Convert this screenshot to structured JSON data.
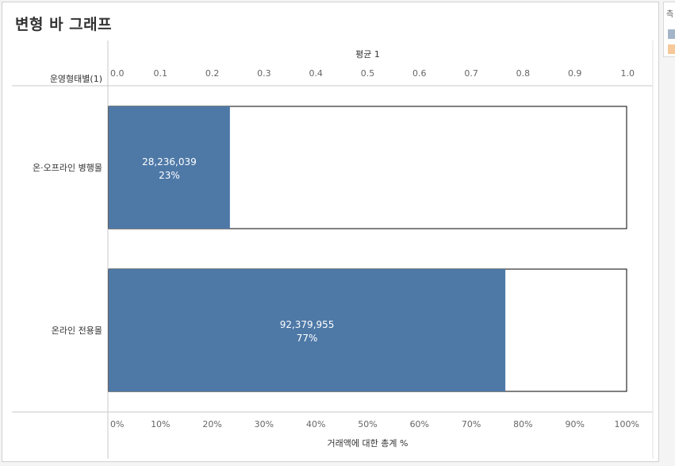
{
  "title": "변형 바 그래프",
  "legend": {
    "title": "측",
    "swatches": [
      {
        "color": "#a5b5c9"
      },
      {
        "color": "#f6c89a"
      }
    ]
  },
  "chart_data": {
    "type": "bar",
    "orientation": "horizontal",
    "row_header": "운영형태별(1)",
    "top_axis": {
      "label": "평균 1",
      "range": [
        0,
        1
      ],
      "ticks": [
        "0.0",
        "0.1",
        "0.2",
        "0.3",
        "0.4",
        "0.5",
        "0.6",
        "0.7",
        "0.8",
        "0.9",
        "1.0"
      ]
    },
    "bottom_axis": {
      "label": "거래액에 대한 총계 %",
      "range": [
        0,
        100
      ],
      "ticks": [
        "0%",
        "10%",
        "20%",
        "30%",
        "40%",
        "50%",
        "60%",
        "70%",
        "80%",
        "90%",
        "100%"
      ]
    },
    "categories": [
      "온·오프라인 병행몰",
      "온라인 전용몰"
    ],
    "background_value": 1.0,
    "values": [
      0.2341,
      0.7659
    ],
    "data_labels": [
      {
        "amount": "28,236,039",
        "percent": "23%"
      },
      {
        "amount": "92,379,955",
        "percent": "77%"
      }
    ],
    "colors": {
      "bar": "#4e79a7",
      "background_bar": "#ffffff",
      "outline": "#000000"
    },
    "grid": false
  }
}
